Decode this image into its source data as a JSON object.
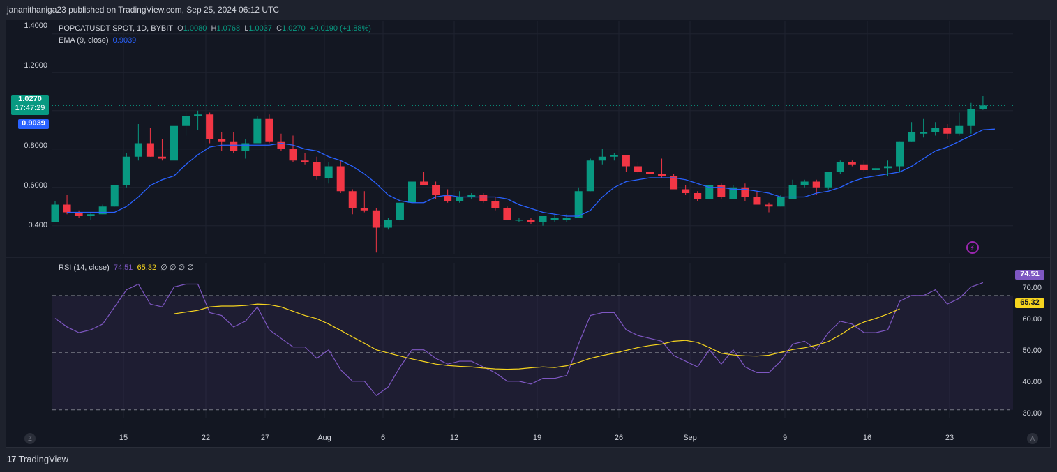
{
  "header": {
    "publisher": "jananithaniga23 published on TradingView.com, Sep 25, 2024 06:12 UTC"
  },
  "legend": {
    "symbol": "POPCATUSDT SPOT, 1D, BYBIT",
    "o_label": "O",
    "o_value": "1.0080",
    "h_label": "H",
    "h_value": "1.0768",
    "l_label": "L",
    "l_value": "1.0037",
    "c_label": "C",
    "c_value": "1.0270",
    "change": "+0.0190 (+1.88%)",
    "ema_label": "EMA (9, close)",
    "ema_value": "0.9039",
    "rsi_label": "RSI (14, close)",
    "rsi_value": "74.51",
    "rsi_ma_value": "65.32",
    "rsi_extra": "∅ ∅ ∅ ∅"
  },
  "price_axis": {
    "labels": [
      "1.4000",
      "1.2000",
      "0.8000",
      "0.6000",
      "0.400"
    ],
    "last_price": "1.0270",
    "countdown": "17:47:29",
    "ema_tag": "0.9039"
  },
  "rsi_axis": {
    "labels": [
      "70.00",
      "60.00",
      "50.00",
      "40.00",
      "30.00"
    ],
    "rsi_tag": "74.51",
    "ma_tag": "65.32"
  },
  "time_axis": {
    "labels": [
      "15",
      "22",
      "27",
      "Aug",
      "6",
      "12",
      "19",
      "26",
      "Sep",
      "9",
      "16",
      "23"
    ],
    "left_btn": "Z",
    "right_btn": "A"
  },
  "footer": {
    "logo_glyph": "17",
    "brand": "TradingView"
  },
  "colors": {
    "up": "#089981",
    "down": "#f23645",
    "ema": "#2962ff",
    "rsi": "#7e57c2",
    "rsi_ma": "#f7d51f",
    "grid": "#1f2330"
  },
  "chart_data": {
    "type": "candlestick",
    "title": "POPCATUSDT SPOT, 1D, BYBIT",
    "ylim": [
      0.25,
      1.45
    ],
    "yticks": [
      0.4,
      0.6,
      0.8,
      1.2,
      1.4
    ],
    "candles": [
      [
        0.42,
        0.53,
        0.42,
        0.51
      ],
      [
        0.51,
        0.56,
        0.46,
        0.47
      ],
      [
        0.47,
        0.48,
        0.44,
        0.45
      ],
      [
        0.45,
        0.47,
        0.43,
        0.46
      ],
      [
        0.46,
        0.51,
        0.46,
        0.5
      ],
      [
        0.5,
        0.61,
        0.5,
        0.61
      ],
      [
        0.61,
        0.78,
        0.6,
        0.76
      ],
      [
        0.76,
        0.93,
        0.74,
        0.83
      ],
      [
        0.83,
        0.91,
        0.76,
        0.76
      ],
      [
        0.76,
        0.85,
        0.74,
        0.75
      ],
      [
        0.74,
        0.96,
        0.7,
        0.92
      ],
      [
        0.92,
        0.99,
        0.87,
        0.97
      ],
      [
        0.97,
        1.0,
        0.9,
        0.98
      ],
      [
        0.98,
        0.99,
        0.83,
        0.85
      ],
      [
        0.85,
        0.89,
        0.79,
        0.84
      ],
      [
        0.84,
        0.89,
        0.78,
        0.79
      ],
      [
        0.79,
        0.85,
        0.75,
        0.83
      ],
      [
        0.83,
        0.97,
        0.83,
        0.96
      ],
      [
        0.96,
        0.98,
        0.83,
        0.84
      ],
      [
        0.84,
        0.88,
        0.79,
        0.8
      ],
      [
        0.8,
        0.87,
        0.73,
        0.74
      ],
      [
        0.74,
        0.78,
        0.72,
        0.73
      ],
      [
        0.73,
        0.76,
        0.64,
        0.66
      ],
      [
        0.65,
        0.73,
        0.62,
        0.71
      ],
      [
        0.71,
        0.74,
        0.57,
        0.58
      ],
      [
        0.58,
        0.59,
        0.46,
        0.49
      ],
      [
        0.49,
        0.58,
        0.47,
        0.48
      ],
      [
        0.48,
        0.49,
        0.26,
        0.39
      ],
      [
        0.39,
        0.44,
        0.38,
        0.43
      ],
      [
        0.43,
        0.56,
        0.42,
        0.52
      ],
      [
        0.52,
        0.65,
        0.5,
        0.63
      ],
      [
        0.63,
        0.68,
        0.61,
        0.61
      ],
      [
        0.61,
        0.63,
        0.54,
        0.56
      ],
      [
        0.56,
        0.59,
        0.52,
        0.53
      ],
      [
        0.53,
        0.58,
        0.52,
        0.55
      ],
      [
        0.55,
        0.57,
        0.54,
        0.56
      ],
      [
        0.56,
        0.57,
        0.52,
        0.53
      ],
      [
        0.53,
        0.55,
        0.48,
        0.49
      ],
      [
        0.49,
        0.5,
        0.43,
        0.43
      ],
      [
        0.43,
        0.44,
        0.42,
        0.43
      ],
      [
        0.43,
        0.44,
        0.41,
        0.42
      ],
      [
        0.42,
        0.44,
        0.4,
        0.45
      ],
      [
        0.43,
        0.46,
        0.42,
        0.44
      ],
      [
        0.43,
        0.46,
        0.42,
        0.44
      ],
      [
        0.44,
        0.6,
        0.44,
        0.58
      ],
      [
        0.58,
        0.75,
        0.58,
        0.74
      ],
      [
        0.74,
        0.8,
        0.72,
        0.76
      ],
      [
        0.76,
        0.78,
        0.74,
        0.77
      ],
      [
        0.77,
        0.77,
        0.68,
        0.71
      ],
      [
        0.71,
        0.73,
        0.67,
        0.68
      ],
      [
        0.68,
        0.75,
        0.66,
        0.67
      ],
      [
        0.67,
        0.75,
        0.65,
        0.66
      ],
      [
        0.66,
        0.67,
        0.59,
        0.59
      ],
      [
        0.59,
        0.61,
        0.56,
        0.57
      ],
      [
        0.57,
        0.58,
        0.53,
        0.54
      ],
      [
        0.54,
        0.61,
        0.54,
        0.61
      ],
      [
        0.61,
        0.62,
        0.54,
        0.55
      ],
      [
        0.54,
        0.61,
        0.54,
        0.6
      ],
      [
        0.6,
        0.62,
        0.53,
        0.55
      ],
      [
        0.55,
        0.58,
        0.51,
        0.51
      ],
      [
        0.51,
        0.52,
        0.47,
        0.5
      ],
      [
        0.5,
        0.56,
        0.5,
        0.55
      ],
      [
        0.54,
        0.64,
        0.54,
        0.61
      ],
      [
        0.61,
        0.64,
        0.6,
        0.63
      ],
      [
        0.63,
        0.64,
        0.56,
        0.6
      ],
      [
        0.6,
        0.68,
        0.59,
        0.68
      ],
      [
        0.68,
        0.74,
        0.67,
        0.73
      ],
      [
        0.73,
        0.74,
        0.71,
        0.72
      ],
      [
        0.72,
        0.74,
        0.68,
        0.69
      ],
      [
        0.69,
        0.71,
        0.68,
        0.7
      ],
      [
        0.7,
        0.74,
        0.66,
        0.71
      ],
      [
        0.71,
        0.84,
        0.68,
        0.84
      ],
      [
        0.84,
        0.94,
        0.84,
        0.89
      ],
      [
        0.88,
        0.96,
        0.86,
        0.89
      ],
      [
        0.89,
        0.94,
        0.87,
        0.91
      ],
      [
        0.91,
        0.93,
        0.85,
        0.88
      ],
      [
        0.88,
        0.99,
        0.87,
        0.92
      ],
      [
        0.92,
        1.04,
        0.88,
        1.01
      ],
      [
        1.008,
        1.0768,
        1.0037,
        1.027
      ]
    ],
    "ema": [
      0.47,
      0.47,
      0.47,
      0.47,
      0.47,
      0.5,
      0.55,
      0.61,
      0.64,
      0.66,
      0.72,
      0.77,
      0.81,
      0.82,
      0.82,
      0.82,
      0.82,
      0.82,
      0.83,
      0.82,
      0.8,
      0.79,
      0.76,
      0.74,
      0.71,
      0.67,
      0.62,
      0.56,
      0.53,
      0.52,
      0.52,
      0.55,
      0.56,
      0.55,
      0.55,
      0.55,
      0.55,
      0.54,
      0.51,
      0.49,
      0.47,
      0.46,
      0.45,
      0.45,
      0.48,
      0.55,
      0.6,
      0.63,
      0.64,
      0.65,
      0.65,
      0.65,
      0.64,
      0.62,
      0.6,
      0.6,
      0.59,
      0.59,
      0.58,
      0.57,
      0.55,
      0.55,
      0.55,
      0.57,
      0.58,
      0.6,
      0.63,
      0.65,
      0.66,
      0.67,
      0.68,
      0.71,
      0.75,
      0.79,
      0.81,
      0.84,
      0.87,
      0.9,
      0.9039
    ],
    "rsi": {
      "name": "RSI (14, close)",
      "ylim": [
        27,
        79
      ],
      "yticks": [
        30,
        40,
        50,
        60,
        70
      ],
      "bands": [
        30,
        50,
        70
      ],
      "rsi": [
        62,
        59,
        57,
        58,
        60,
        66,
        72,
        74,
        67,
        66,
        73,
        74,
        74,
        64,
        63,
        59,
        61,
        66,
        58,
        55,
        52,
        52,
        48,
        51,
        44,
        40,
        40,
        35,
        38,
        45,
        51,
        51,
        48,
        46,
        47,
        47,
        45,
        43,
        40,
        40,
        39,
        41,
        41,
        42,
        53,
        63,
        64,
        64,
        58,
        56,
        55,
        54,
        49,
        47,
        45,
        51,
        46,
        51,
        45,
        43,
        43,
        47,
        53,
        54,
        51,
        57,
        61,
        60,
        57,
        57,
        58,
        68,
        70,
        70,
        72,
        67,
        69,
        73,
        74.51
      ],
      "rsi_ma_start": 10,
      "rsi_ma": [
        63.6,
        64.2,
        64.8,
        66,
        66.3,
        66.3,
        66.5,
        67,
        66.8,
        66,
        64.5,
        63,
        61.9,
        60,
        57.8,
        55.5,
        53.3,
        51,
        49.9,
        48.8,
        47.8,
        46.9,
        46,
        45.5,
        45.2,
        45,
        44.6,
        44.3,
        44.2,
        44.3,
        44.7,
        45,
        44.8,
        45.4,
        46.6,
        48,
        49,
        49.8,
        50.8,
        51.8,
        52.5,
        53,
        54,
        54.3,
        53.6,
        51.8,
        49.8,
        49.2,
        48.9,
        48.8,
        49.1,
        50.1,
        51.1,
        51.7,
        52.6,
        53.9,
        56.2,
        58.9,
        60.7,
        62.0,
        63.5,
        65.32
      ]
    }
  }
}
